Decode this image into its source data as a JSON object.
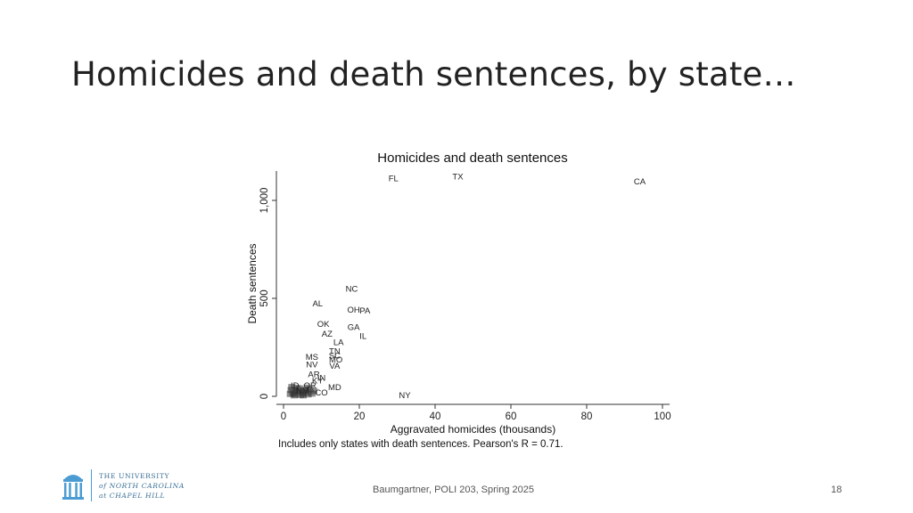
{
  "slide": {
    "title": "Homicides and death sentences, by state…",
    "footer": "Baumgartner, POLI 203, Spring 2025",
    "page_number": "18",
    "logo": {
      "line1": "THE UNIVERSITY",
      "line2": "of NORTH CAROLINA",
      "line3": "at CHAPEL HILL"
    }
  },
  "chart_data": {
    "type": "scatter",
    "title": "Homicides and death sentences",
    "xlabel": "Aggravated homicides (thousands)",
    "ylabel": "Death sentences",
    "note": "Includes only states with death sentences. Pearson's R = 0.71.",
    "xlim": [
      0,
      100
    ],
    "ylim": [
      0,
      1150
    ],
    "xticks": [
      0,
      20,
      40,
      60,
      80,
      100
    ],
    "yticks": [
      0,
      500,
      1000
    ],
    "xtick_labels": [
      "0",
      "20",
      "40",
      "60",
      "80",
      "100"
    ],
    "ytick_labels": [
      "0",
      "500",
      "1,000"
    ],
    "grid": false,
    "points": [
      {
        "label": "FL",
        "x": 29,
        "y": 1115
      },
      {
        "label": "TX",
        "x": 46,
        "y": 1125
      },
      {
        "label": "CA",
        "x": 94,
        "y": 1100
      },
      {
        "label": "NC",
        "x": 18,
        "y": 552
      },
      {
        "label": "AL",
        "x": 9,
        "y": 477
      },
      {
        "label": "OH",
        "x": 18.5,
        "y": 445
      },
      {
        "label": "PA",
        "x": 21.5,
        "y": 440
      },
      {
        "label": "OK",
        "x": 10.5,
        "y": 372
      },
      {
        "label": "GA",
        "x": 18.5,
        "y": 357
      },
      {
        "label": "AZ",
        "x": 11.5,
        "y": 322
      },
      {
        "label": "IL",
        "x": 21,
        "y": 312
      },
      {
        "label": "LA",
        "x": 14.5,
        "y": 280
      },
      {
        "label": "TN",
        "x": 13.5,
        "y": 235
      },
      {
        "label": "SC",
        "x": 13.5,
        "y": 212
      },
      {
        "label": "MO",
        "x": 13.8,
        "y": 192
      },
      {
        "label": "MS",
        "x": 7.5,
        "y": 205
      },
      {
        "label": "NV",
        "x": 7.5,
        "y": 165
      },
      {
        "label": "VA",
        "x": 13.5,
        "y": 158
      },
      {
        "label": "AR",
        "x": 8,
        "y": 115
      },
      {
        "label": "IN",
        "x": 10,
        "y": 98
      },
      {
        "label": "KY",
        "x": 9,
        "y": 85
      },
      {
        "label": "MD",
        "x": 13.5,
        "y": 50
      },
      {
        "label": "OR",
        "x": 7,
        "y": 60
      },
      {
        "label": "ID",
        "x": 3,
        "y": 58
      },
      {
        "label": "NM",
        "x": 5,
        "y": 35
      },
      {
        "label": "CO",
        "x": 10,
        "y": 22
      },
      {
        "label": "NY",
        "x": 32,
        "y": 10
      }
    ],
    "cluster_points": [
      {
        "x": 2,
        "y": 30
      },
      {
        "x": 2.5,
        "y": 15
      },
      {
        "x": 3,
        "y": 8
      },
      {
        "x": 3.5,
        "y": 40
      },
      {
        "x": 4,
        "y": 20
      },
      {
        "x": 4.5,
        "y": 5
      },
      {
        "x": 5,
        "y": 12
      },
      {
        "x": 5.5,
        "y": 28
      },
      {
        "x": 6,
        "y": 18
      },
      {
        "x": 6.5,
        "y": 8
      },
      {
        "x": 7,
        "y": 35
      },
      {
        "x": 2.2,
        "y": 45
      },
      {
        "x": 3.2,
        "y": 25
      },
      {
        "x": 4.2,
        "y": 38
      },
      {
        "x": 5.2,
        "y": 3
      },
      {
        "x": 6.2,
        "y": 42
      },
      {
        "x": 7.5,
        "y": 12
      },
      {
        "x": 8,
        "y": 25
      },
      {
        "x": 2.8,
        "y": 3
      },
      {
        "x": 1.8,
        "y": 10
      }
    ]
  }
}
